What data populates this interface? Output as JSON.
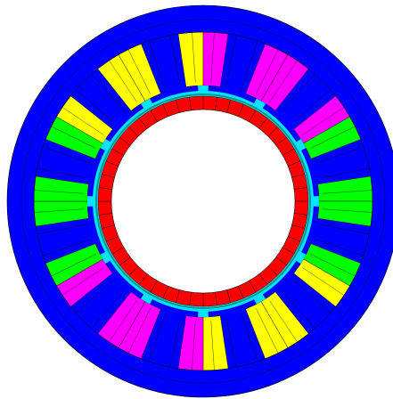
{
  "diagram": {
    "colors": {
      "stator_back_iron": "#0000ff",
      "slot_wedge": "#00e5ff",
      "air_gap_ring": "#009688",
      "rotor_magnet": "#ff0000",
      "winding_yellow": "#ffff00",
      "winding_magenta": "#ff00ff",
      "winding_green": "#00ff00",
      "mesh_line": "#000000",
      "background": "#ffffff"
    },
    "slots": [
      {
        "position": "top",
        "left_coil": "yellow",
        "right_coil": "magenta"
      },
      {
        "position": "top-right",
        "left_coil": "magenta",
        "right_coil": "magenta"
      },
      {
        "position": "right-upper",
        "left_coil": "magenta",
        "right_coil": "green"
      },
      {
        "position": "right",
        "left_coil": "green",
        "right_coil": "green"
      },
      {
        "position": "right-lower",
        "left_coil": "green",
        "right_coil": "yellow"
      },
      {
        "position": "bottom-right",
        "left_coil": "yellow",
        "right_coil": "yellow"
      },
      {
        "position": "bottom",
        "left_coil": "yellow",
        "right_coil": "magenta"
      },
      {
        "position": "bottom-left",
        "left_coil": "magenta",
        "right_coil": "magenta"
      },
      {
        "position": "left-lower",
        "left_coil": "magenta",
        "right_coil": "green"
      },
      {
        "position": "left",
        "left_coil": "green",
        "right_coil": "green"
      },
      {
        "position": "left-upper",
        "left_coil": "green",
        "right_coil": "yellow"
      },
      {
        "position": "top-left",
        "left_coil": "yellow",
        "right_coil": "yellow"
      }
    ],
    "rotor_magnet_segments": 48
  }
}
